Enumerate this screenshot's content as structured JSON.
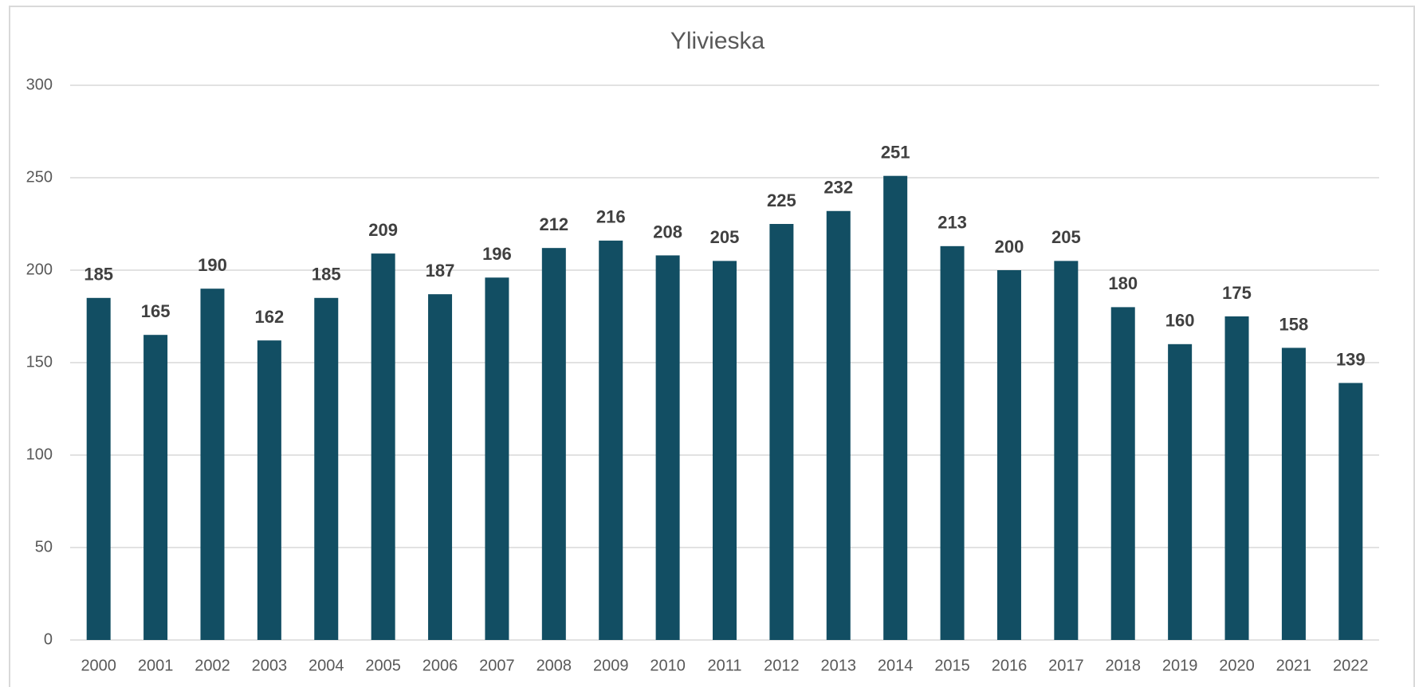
{
  "chart_data": {
    "type": "bar",
    "title": "Ylivieska",
    "categories": [
      "2000",
      "2001",
      "2002",
      "2003",
      "2004",
      "2005",
      "2006",
      "2007",
      "2008",
      "2009",
      "2010",
      "2011",
      "2012",
      "2013",
      "2014",
      "2015",
      "2016",
      "2017",
      "2018",
      "2019",
      "2020",
      "2021",
      "2022"
    ],
    "values": [
      185,
      165,
      190,
      162,
      185,
      209,
      187,
      196,
      212,
      216,
      208,
      205,
      225,
      232,
      251,
      213,
      200,
      205,
      180,
      160,
      175,
      158,
      139
    ],
    "color": "#124e63",
    "ylim": [
      0,
      300
    ],
    "yticks": [
      0,
      50,
      100,
      150,
      200,
      250,
      300
    ],
    "grid": true
  }
}
